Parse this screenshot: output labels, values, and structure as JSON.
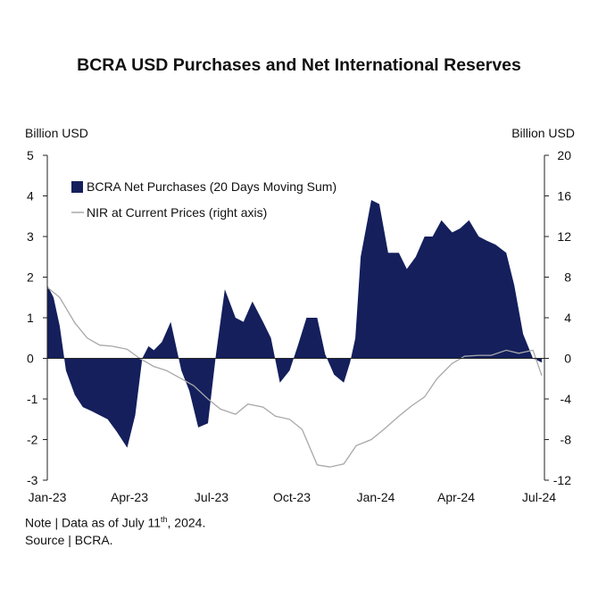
{
  "title": "BCRA USD Purchases and Net International Reserves",
  "left_unit": "Billion USD",
  "right_unit": "Billion USD",
  "note": {
    "prefix": "Note | Data as of July 11",
    "sup": "th",
    "suffix": ", 2024."
  },
  "source": "Source | BCRA.",
  "colors": {
    "area": "#141f5c",
    "line": "#a8a8a8",
    "axis": "#222222"
  },
  "chart_data": {
    "type": "area",
    "x_ticks": [
      "Jan-23",
      "Apr-23",
      "Jul-23",
      "Oct-23",
      "Jan-24",
      "Apr-24",
      "Jul-24"
    ],
    "y_left": {
      "label": "Billion USD",
      "range": [
        -3,
        5
      ],
      "ticks": [
        -3,
        -2,
        -1,
        0,
        1,
        2,
        3,
        4,
        5
      ]
    },
    "y_right": {
      "label": "Billion USD",
      "range": [
        -12,
        20
      ],
      "ticks": [
        -12,
        -8,
        -4,
        0,
        4,
        8,
        12,
        16,
        20
      ]
    },
    "legend": {
      "placement": "top-left"
    },
    "grid": false,
    "series": [
      {
        "name": "BCRA Net Purchases (20 Days Moving Sum)",
        "axis": "left",
        "kind": "area",
        "x": [
          "2023-01-01",
          "2023-01-08",
          "2023-01-15",
          "2023-01-22",
          "2023-02-01",
          "2023-02-10",
          "2023-02-20",
          "2023-03-01",
          "2023-03-10",
          "2023-03-20",
          "2023-04-01",
          "2023-04-10",
          "2023-04-18",
          "2023-04-25",
          "2023-05-01",
          "2023-05-10",
          "2023-05-20",
          "2023-06-01",
          "2023-06-10",
          "2023-06-20",
          "2023-07-01",
          "2023-07-10",
          "2023-07-20",
          "2023-08-01",
          "2023-08-10",
          "2023-08-20",
          "2023-09-01",
          "2023-09-10",
          "2023-09-20",
          "2023-10-01",
          "2023-10-10",
          "2023-10-20",
          "2023-11-01",
          "2023-11-10",
          "2023-11-20",
          "2023-12-01",
          "2023-12-08",
          "2023-12-14",
          "2023-12-20",
          "2024-01-01",
          "2024-01-10",
          "2024-01-20",
          "2024-02-01",
          "2024-02-10",
          "2024-02-20",
          "2024-03-01",
          "2024-03-10",
          "2024-03-20",
          "2024-04-01",
          "2024-04-10",
          "2024-04-20",
          "2024-05-01",
          "2024-05-10",
          "2024-05-20",
          "2024-06-01",
          "2024-06-10",
          "2024-06-20",
          "2024-07-01",
          "2024-07-11"
        ],
        "y": [
          1.8,
          1.5,
          0.8,
          -0.3,
          -0.9,
          -1.2,
          -1.3,
          -1.4,
          -1.5,
          -1.8,
          -2.2,
          -1.4,
          0.0,
          0.3,
          0.2,
          0.4,
          0.9,
          -0.3,
          -0.8,
          -1.7,
          -1.6,
          0.1,
          1.7,
          1.0,
          0.9,
          1.4,
          0.9,
          0.5,
          -0.6,
          -0.3,
          0.3,
          1.0,
          1.0,
          0.1,
          -0.4,
          -0.6,
          -0.1,
          0.5,
          2.5,
          3.9,
          3.8,
          2.6,
          2.6,
          2.2,
          2.5,
          3.0,
          3.0,
          3.4,
          3.1,
          3.2,
          3.4,
          3.0,
          2.9,
          2.8,
          2.6,
          1.8,
          0.6,
          0.0,
          -0.1
        ]
      },
      {
        "name": "NIR at Current Prices (right axis)",
        "axis": "right",
        "kind": "line",
        "x": [
          "2023-01-01",
          "2023-01-15",
          "2023-02-01",
          "2023-02-15",
          "2023-03-01",
          "2023-03-15",
          "2023-04-01",
          "2023-04-15",
          "2023-05-01",
          "2023-05-15",
          "2023-06-01",
          "2023-06-15",
          "2023-07-01",
          "2023-07-15",
          "2023-08-01",
          "2023-08-15",
          "2023-09-01",
          "2023-09-15",
          "2023-10-01",
          "2023-10-15",
          "2023-11-01",
          "2023-11-15",
          "2023-12-01",
          "2023-12-15",
          "2024-01-01",
          "2024-01-15",
          "2024-02-01",
          "2024-02-15",
          "2024-03-01",
          "2024-03-15",
          "2024-04-01",
          "2024-04-15",
          "2024-05-01",
          "2024-05-15",
          "2024-06-01",
          "2024-06-15",
          "2024-07-01",
          "2024-07-11"
        ],
        "y": [
          7.0,
          6.0,
          3.5,
          2.0,
          1.3,
          1.2,
          0.9,
          0.0,
          -0.8,
          -1.2,
          -2.0,
          -2.7,
          -4.0,
          -5.0,
          -5.5,
          -4.5,
          -4.8,
          -5.7,
          -6.0,
          -7.0,
          -10.5,
          -10.7,
          -10.4,
          -8.6,
          -8.0,
          -7.0,
          -5.7,
          -4.7,
          -3.8,
          -2.0,
          -0.5,
          0.2,
          0.3,
          0.3,
          0.8,
          0.5,
          0.8,
          -1.7
        ]
      }
    ]
  }
}
